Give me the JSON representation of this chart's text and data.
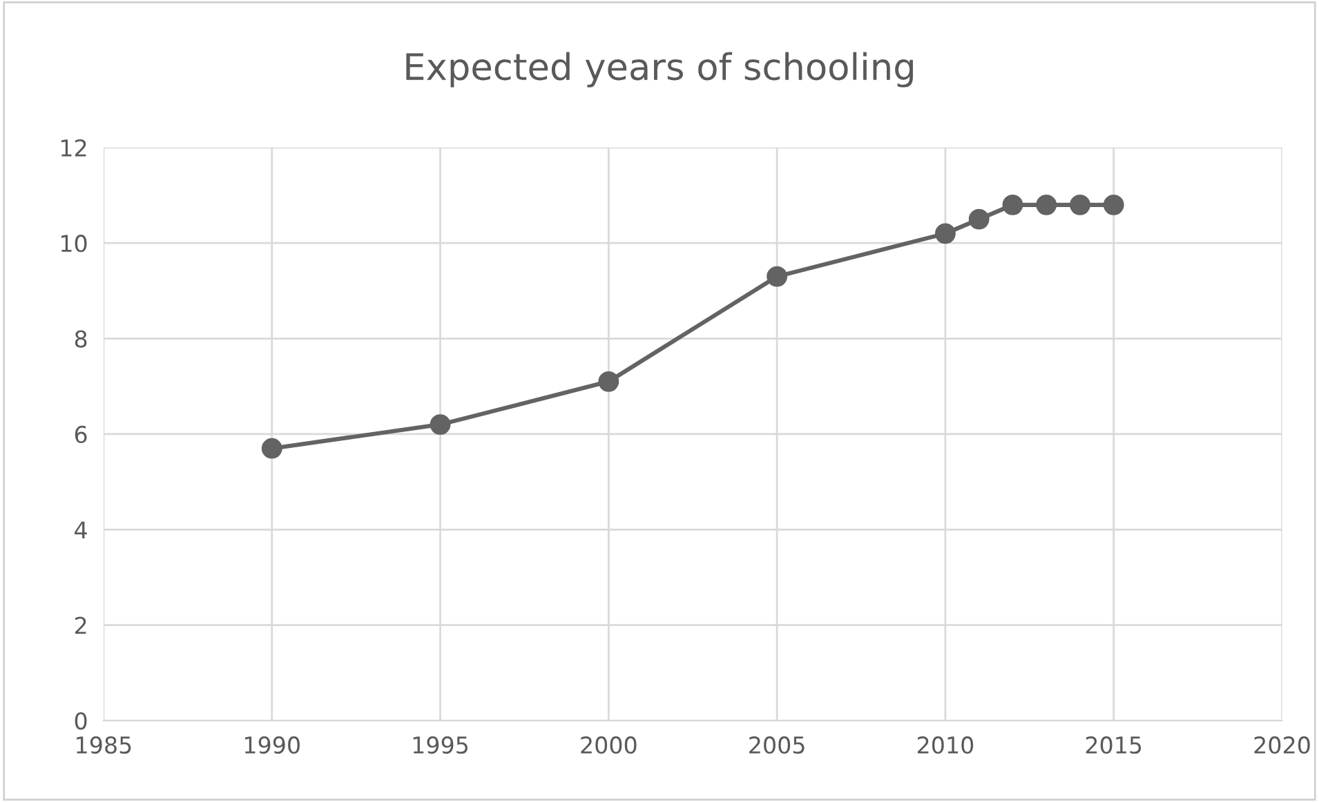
{
  "chart_data": {
    "type": "line",
    "title": "Expected years of schooling",
    "x": [
      1990,
      1995,
      2000,
      2005,
      2010,
      2011,
      2012,
      2013,
      2014,
      2015
    ],
    "series": [
      {
        "color": "#636363",
        "values": [
          5.7,
          6.2,
          7.1,
          9.3,
          10.2,
          10.5,
          10.8,
          10.8,
          10.8,
          10.8
        ]
      }
    ],
    "xlim": [
      1985,
      2020
    ],
    "xticks": [
      1985,
      1990,
      1995,
      2000,
      2005,
      2010,
      2015,
      2020
    ],
    "ylim": [
      0,
      12
    ],
    "yticks": [
      0,
      2,
      4,
      6,
      8,
      10,
      12
    ],
    "grid": true,
    "marker": "circle",
    "line_style": "solid",
    "legend": false
  }
}
